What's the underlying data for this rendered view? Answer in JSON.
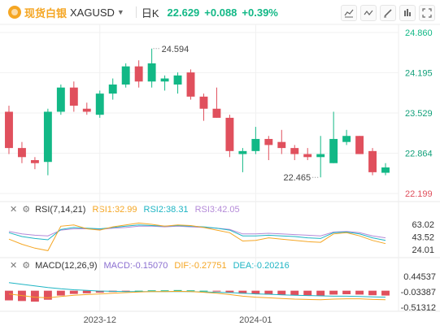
{
  "header": {
    "brand": "现货白银",
    "symbol": "XAGUSD",
    "period": "日K",
    "price": "22.629",
    "change": "+0.088",
    "change_pct": "+0.39%"
  },
  "colors": {
    "up": "#12b886",
    "down": "#e0505d",
    "rsi1": "#f5a623",
    "rsi2": "#1fb5c4",
    "rsi3": "#b48ad8",
    "macd_label": "#8b6fd0",
    "dif": "#f5a623",
    "dea": "#1fb5c4"
  },
  "chart_data": {
    "type": "candlestick",
    "price_axis": {
      "ticks": [
        24.86,
        24.195,
        23.529,
        22.864,
        22.199
      ],
      "tick_labels": [
        "24.860",
        "24.195",
        "23.529",
        "22.864",
        "22.199"
      ]
    },
    "x_axis": {
      "labels": [
        {
          "label": "2023-12",
          "index": 7
        },
        {
          "label": "2024-01",
          "index": 19
        }
      ]
    },
    "annotations": [
      {
        "label": "24.594",
        "index": 11,
        "value": 24.594
      },
      {
        "label": "22.465",
        "index": 24,
        "value": 22.465
      }
    ],
    "candles": [
      {
        "o": 23.55,
        "h": 23.65,
        "l": 22.85,
        "c": 22.95
      },
      {
        "o": 22.95,
        "h": 23.05,
        "l": 22.7,
        "c": 22.8
      },
      {
        "o": 22.75,
        "h": 22.8,
        "l": 22.6,
        "c": 22.7
      },
      {
        "o": 22.72,
        "h": 23.6,
        "l": 22.5,
        "c": 23.55
      },
      {
        "o": 23.55,
        "h": 24.0,
        "l": 23.5,
        "c": 23.95
      },
      {
        "o": 23.95,
        "h": 24.05,
        "l": 23.55,
        "c": 23.65
      },
      {
        "o": 23.6,
        "h": 23.7,
        "l": 23.5,
        "c": 23.55
      },
      {
        "o": 23.5,
        "h": 23.9,
        "l": 23.45,
        "c": 23.85
      },
      {
        "o": 23.85,
        "h": 24.1,
        "l": 23.75,
        "c": 24.0
      },
      {
        "o": 24.0,
        "h": 24.35,
        "l": 23.95,
        "c": 24.3
      },
      {
        "o": 24.3,
        "h": 24.4,
        "l": 23.95,
        "c": 24.05
      },
      {
        "o": 24.05,
        "h": 24.594,
        "l": 23.95,
        "c": 24.35
      },
      {
        "o": 24.05,
        "h": 24.15,
        "l": 23.9,
        "c": 24.1
      },
      {
        "o": 24.0,
        "h": 24.2,
        "l": 23.85,
        "c": 24.15
      },
      {
        "o": 24.2,
        "h": 24.25,
        "l": 23.75,
        "c": 23.8
      },
      {
        "o": 23.8,
        "h": 23.85,
        "l": 23.4,
        "c": 23.6
      },
      {
        "o": 23.6,
        "h": 23.95,
        "l": 23.45,
        "c": 23.45
      },
      {
        "o": 23.45,
        "h": 23.5,
        "l": 22.8,
        "c": 22.9
      },
      {
        "o": 22.85,
        "h": 22.95,
        "l": 22.55,
        "c": 22.9
      },
      {
        "o": 22.9,
        "h": 23.3,
        "l": 22.85,
        "c": 23.1
      },
      {
        "o": 23.1,
        "h": 23.15,
        "l": 22.75,
        "c": 23.0
      },
      {
        "o": 23.05,
        "h": 23.25,
        "l": 22.85,
        "c": 22.95
      },
      {
        "o": 22.95,
        "h": 23.0,
        "l": 22.75,
        "c": 22.85
      },
      {
        "o": 22.85,
        "h": 22.95,
        "l": 22.75,
        "c": 22.8
      },
      {
        "o": 22.8,
        "h": 23.15,
        "l": 22.465,
        "c": 22.85
      },
      {
        "o": 22.7,
        "h": 23.55,
        "l": 22.7,
        "c": 23.1
      },
      {
        "o": 23.05,
        "h": 23.25,
        "l": 23.0,
        "c": 23.15
      },
      {
        "o": 23.15,
        "h": 23.15,
        "l": 22.85,
        "c": 22.85
      },
      {
        "o": 22.9,
        "h": 22.95,
        "l": 22.5,
        "c": 22.55
      },
      {
        "o": 22.541,
        "h": 22.7,
        "l": 22.5,
        "c": 22.629
      }
    ],
    "rsi": {
      "label": "RSI(7,14,21)",
      "rsi1_label": "RSI1:32.99",
      "rsi2_label": "RSI2:38.31",
      "rsi3_label": "RSI3:42.05",
      "ticks": [
        "63.02",
        "43.52",
        "24.01"
      ],
      "tick_values": [
        63.02,
        43.52,
        24.01
      ],
      "rsi1": [
        40,
        32,
        26,
        22,
        60,
        62,
        56,
        54,
        59,
        62,
        65,
        63,
        60,
        62,
        61,
        58,
        54,
        50,
        37,
        38,
        42,
        40,
        38,
        36,
        35,
        48,
        50,
        45,
        38,
        33
      ],
      "rsi2": [
        50,
        44,
        41,
        39,
        55,
        58,
        57,
        56,
        58,
        60,
        62,
        61,
        60,
        61,
        60,
        59,
        57,
        54,
        45,
        45,
        46,
        45,
        44,
        42,
        41,
        50,
        51,
        48,
        42,
        38
      ],
      "rsi3": [
        52,
        48,
        46,
        45,
        54,
        56,
        56,
        55,
        57,
        58,
        60,
        60,
        59,
        60,
        59,
        58,
        57,
        55,
        48,
        48,
        49,
        48,
        47,
        46,
        45,
        51,
        52,
        50,
        45,
        42
      ]
    },
    "macd": {
      "label": "MACD(12,26,9)",
      "macd_label": "MACD:-0.15070",
      "dif_label": "DIF:-0.27751",
      "dea_label": "DEA:-0.20216",
      "ticks": [
        "0.44537",
        "-0.03387",
        "-0.51312"
      ],
      "tick_values": [
        0.44537,
        -0.03387,
        -0.51312
      ],
      "hist": [
        -0.3,
        -0.32,
        -0.34,
        -0.28,
        -0.15,
        -0.1,
        -0.08,
        -0.06,
        -0.04,
        -0.02,
        0.0,
        0.01,
        0.01,
        0.02,
        0.01,
        0.0,
        -0.02,
        -0.05,
        -0.09,
        -0.1,
        -0.12,
        -0.13,
        -0.14,
        -0.15,
        -0.16,
        -0.12,
        -0.11,
        -0.12,
        -0.14,
        -0.15
      ],
      "dif": [
        -0.1,
        -0.15,
        -0.2,
        -0.22,
        -0.18,
        -0.14,
        -0.12,
        -0.1,
        -0.08,
        -0.06,
        -0.04,
        -0.03,
        -0.03,
        -0.02,
        -0.03,
        -0.05,
        -0.08,
        -0.12,
        -0.17,
        -0.2,
        -0.22,
        -0.24,
        -0.26,
        -0.27,
        -0.28,
        -0.26,
        -0.25,
        -0.25,
        -0.27,
        -0.28
      ],
      "dea": [
        0.25,
        0.2,
        0.15,
        0.1,
        0.06,
        0.03,
        0.01,
        -0.01,
        -0.02,
        -0.03,
        -0.03,
        -0.03,
        -0.03,
        -0.03,
        -0.03,
        -0.04,
        -0.05,
        -0.06,
        -0.08,
        -0.1,
        -0.11,
        -0.13,
        -0.14,
        -0.15,
        -0.16,
        -0.17,
        -0.17,
        -0.18,
        -0.19,
        -0.2
      ]
    }
  }
}
